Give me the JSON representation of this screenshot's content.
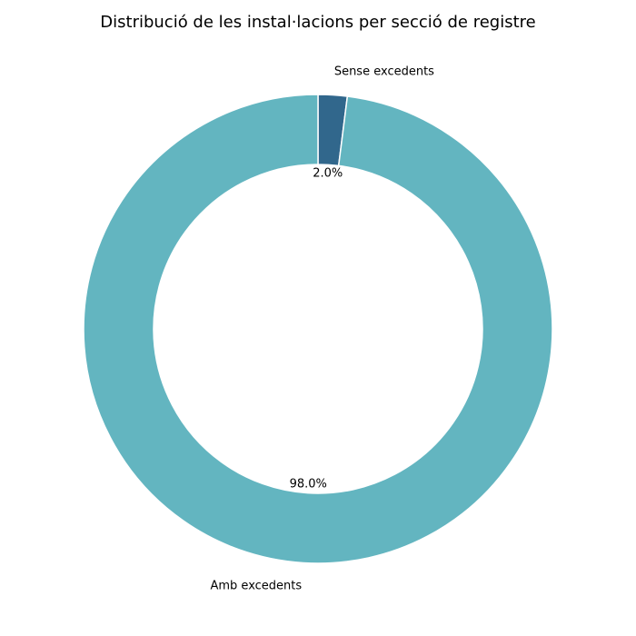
{
  "chart_data": {
    "type": "pie",
    "title": "Distribució de les instal·lacions per secció de registre",
    "categories": [
      "Sense excedents",
      "Amb excedents"
    ],
    "values": [
      2.0,
      98.0
    ],
    "percent_labels": [
      "2.0%",
      "98.0%"
    ],
    "colors": [
      "#31678c",
      "#63b5c0"
    ],
    "donut": true,
    "start_angle_deg": 90,
    "direction": "clockwise",
    "legend": "none"
  }
}
